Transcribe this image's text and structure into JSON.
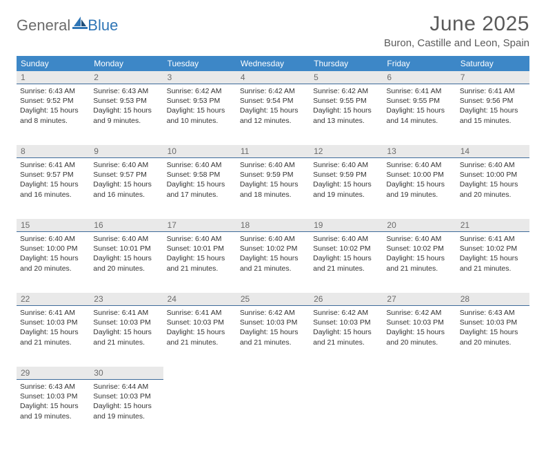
{
  "logo": {
    "general": "General",
    "blue": "Blue"
  },
  "title": "June 2025",
  "location": "Buron, Castille and Leon, Spain",
  "colors": {
    "header_bg": "#3d87c7",
    "daynum_bg": "#e9e9e9",
    "daynum_border": "#3d6a99",
    "text": "#333333",
    "muted": "#6b6b6b",
    "logo_blue": "#2e75b6"
  },
  "dow": [
    "Sunday",
    "Monday",
    "Tuesday",
    "Wednesday",
    "Thursday",
    "Friday",
    "Saturday"
  ],
  "weeks": [
    [
      {
        "n": "1",
        "sr": "Sunrise: 6:43 AM",
        "ss": "Sunset: 9:52 PM",
        "d1": "Daylight: 15 hours",
        "d2": "and 8 minutes."
      },
      {
        "n": "2",
        "sr": "Sunrise: 6:43 AM",
        "ss": "Sunset: 9:53 PM",
        "d1": "Daylight: 15 hours",
        "d2": "and 9 minutes."
      },
      {
        "n": "3",
        "sr": "Sunrise: 6:42 AM",
        "ss": "Sunset: 9:53 PM",
        "d1": "Daylight: 15 hours",
        "d2": "and 10 minutes."
      },
      {
        "n": "4",
        "sr": "Sunrise: 6:42 AM",
        "ss": "Sunset: 9:54 PM",
        "d1": "Daylight: 15 hours",
        "d2": "and 12 minutes."
      },
      {
        "n": "5",
        "sr": "Sunrise: 6:42 AM",
        "ss": "Sunset: 9:55 PM",
        "d1": "Daylight: 15 hours",
        "d2": "and 13 minutes."
      },
      {
        "n": "6",
        "sr": "Sunrise: 6:41 AM",
        "ss": "Sunset: 9:55 PM",
        "d1": "Daylight: 15 hours",
        "d2": "and 14 minutes."
      },
      {
        "n": "7",
        "sr": "Sunrise: 6:41 AM",
        "ss": "Sunset: 9:56 PM",
        "d1": "Daylight: 15 hours",
        "d2": "and 15 minutes."
      }
    ],
    [
      {
        "n": "8",
        "sr": "Sunrise: 6:41 AM",
        "ss": "Sunset: 9:57 PM",
        "d1": "Daylight: 15 hours",
        "d2": "and 16 minutes."
      },
      {
        "n": "9",
        "sr": "Sunrise: 6:40 AM",
        "ss": "Sunset: 9:57 PM",
        "d1": "Daylight: 15 hours",
        "d2": "and 16 minutes."
      },
      {
        "n": "10",
        "sr": "Sunrise: 6:40 AM",
        "ss": "Sunset: 9:58 PM",
        "d1": "Daylight: 15 hours",
        "d2": "and 17 minutes."
      },
      {
        "n": "11",
        "sr": "Sunrise: 6:40 AM",
        "ss": "Sunset: 9:59 PM",
        "d1": "Daylight: 15 hours",
        "d2": "and 18 minutes."
      },
      {
        "n": "12",
        "sr": "Sunrise: 6:40 AM",
        "ss": "Sunset: 9:59 PM",
        "d1": "Daylight: 15 hours",
        "d2": "and 19 minutes."
      },
      {
        "n": "13",
        "sr": "Sunrise: 6:40 AM",
        "ss": "Sunset: 10:00 PM",
        "d1": "Daylight: 15 hours",
        "d2": "and 19 minutes."
      },
      {
        "n": "14",
        "sr": "Sunrise: 6:40 AM",
        "ss": "Sunset: 10:00 PM",
        "d1": "Daylight: 15 hours",
        "d2": "and 20 minutes."
      }
    ],
    [
      {
        "n": "15",
        "sr": "Sunrise: 6:40 AM",
        "ss": "Sunset: 10:00 PM",
        "d1": "Daylight: 15 hours",
        "d2": "and 20 minutes."
      },
      {
        "n": "16",
        "sr": "Sunrise: 6:40 AM",
        "ss": "Sunset: 10:01 PM",
        "d1": "Daylight: 15 hours",
        "d2": "and 20 minutes."
      },
      {
        "n": "17",
        "sr": "Sunrise: 6:40 AM",
        "ss": "Sunset: 10:01 PM",
        "d1": "Daylight: 15 hours",
        "d2": "and 21 minutes."
      },
      {
        "n": "18",
        "sr": "Sunrise: 6:40 AM",
        "ss": "Sunset: 10:02 PM",
        "d1": "Daylight: 15 hours",
        "d2": "and 21 minutes."
      },
      {
        "n": "19",
        "sr": "Sunrise: 6:40 AM",
        "ss": "Sunset: 10:02 PM",
        "d1": "Daylight: 15 hours",
        "d2": "and 21 minutes."
      },
      {
        "n": "20",
        "sr": "Sunrise: 6:40 AM",
        "ss": "Sunset: 10:02 PM",
        "d1": "Daylight: 15 hours",
        "d2": "and 21 minutes."
      },
      {
        "n": "21",
        "sr": "Sunrise: 6:41 AM",
        "ss": "Sunset: 10:02 PM",
        "d1": "Daylight: 15 hours",
        "d2": "and 21 minutes."
      }
    ],
    [
      {
        "n": "22",
        "sr": "Sunrise: 6:41 AM",
        "ss": "Sunset: 10:03 PM",
        "d1": "Daylight: 15 hours",
        "d2": "and 21 minutes."
      },
      {
        "n": "23",
        "sr": "Sunrise: 6:41 AM",
        "ss": "Sunset: 10:03 PM",
        "d1": "Daylight: 15 hours",
        "d2": "and 21 minutes."
      },
      {
        "n": "24",
        "sr": "Sunrise: 6:41 AM",
        "ss": "Sunset: 10:03 PM",
        "d1": "Daylight: 15 hours",
        "d2": "and 21 minutes."
      },
      {
        "n": "25",
        "sr": "Sunrise: 6:42 AM",
        "ss": "Sunset: 10:03 PM",
        "d1": "Daylight: 15 hours",
        "d2": "and 21 minutes."
      },
      {
        "n": "26",
        "sr": "Sunrise: 6:42 AM",
        "ss": "Sunset: 10:03 PM",
        "d1": "Daylight: 15 hours",
        "d2": "and 21 minutes."
      },
      {
        "n": "27",
        "sr": "Sunrise: 6:42 AM",
        "ss": "Sunset: 10:03 PM",
        "d1": "Daylight: 15 hours",
        "d2": "and 20 minutes."
      },
      {
        "n": "28",
        "sr": "Sunrise: 6:43 AM",
        "ss": "Sunset: 10:03 PM",
        "d1": "Daylight: 15 hours",
        "d2": "and 20 minutes."
      }
    ],
    [
      {
        "n": "29",
        "sr": "Sunrise: 6:43 AM",
        "ss": "Sunset: 10:03 PM",
        "d1": "Daylight: 15 hours",
        "d2": "and 19 minutes."
      },
      {
        "n": "30",
        "sr": "Sunrise: 6:44 AM",
        "ss": "Sunset: 10:03 PM",
        "d1": "Daylight: 15 hours",
        "d2": "and 19 minutes."
      },
      null,
      null,
      null,
      null,
      null
    ]
  ]
}
